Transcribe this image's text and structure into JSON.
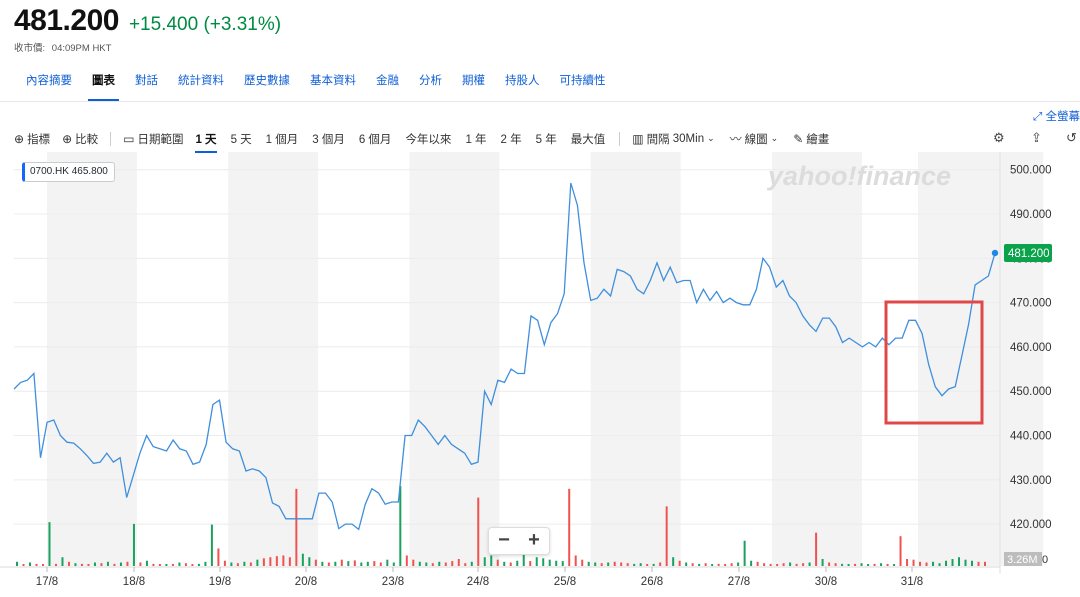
{
  "quote": {
    "price": "481.200",
    "change": "+15.400 (+3.31%)",
    "close_label": "收市價:",
    "close_time": "04:09PM HKT"
  },
  "tabs": [
    "內容摘要",
    "圖表",
    "對話",
    "統計資料",
    "歷史數據",
    "基本資料",
    "金融",
    "分析",
    "期權",
    "持股人",
    "可持續性"
  ],
  "active_tab": 1,
  "fullscreen_label": "全螢幕",
  "toolbar": {
    "indicators": "指標",
    "compare": "比較",
    "date_range": "日期範圍",
    "ranges": [
      "1 天",
      "5 天",
      "1 個月",
      "3 個月",
      "6 個月",
      "今年以來",
      "1 年",
      "2 年",
      "5 年",
      "最大值"
    ],
    "active_range": 0,
    "interval_label": "間隔",
    "interval_value": "30Min",
    "chart_type": "線圖",
    "draw": "繪畫"
  },
  "ticker_tag": "0700.HK 465.800",
  "watermark": "yahoo!finance",
  "zoom": {
    "minus": "−",
    "plus": "+"
  },
  "colors": {
    "line": "#3f8fdc",
    "up": "#19a15f",
    "down": "#ef5350",
    "accent": "#0f5fd6",
    "highlight_box": "#e04848",
    "price_tag": "#0aa24a"
  },
  "chart_data": {
    "type": "line",
    "ylabel": "",
    "ylim": [
      411,
      504
    ],
    "yticks": [
      "500.000",
      "490.000",
      "480.000",
      "470.000",
      "460.000",
      "450.000",
      "440.000",
      "430.000",
      "420.000"
    ],
    "xticks": [
      "17/8",
      "18/8",
      "19/8",
      "20/8",
      "23/8",
      "24/8",
      "25/8",
      "26/8",
      "27/8",
      "30/8",
      "31/8"
    ],
    "last_price_label": "481.200",
    "volume_label": "3.26M",
    "volume_axis_label": "0",
    "series": [
      {
        "values": [
          450.5,
          452,
          452.5,
          454,
          435,
          443,
          443.5,
          440,
          438.5,
          438.3,
          437,
          435.5,
          433.7,
          434,
          436,
          434,
          435,
          426,
          431,
          436,
          440,
          437.5,
          437,
          436.5,
          439,
          437,
          436.5,
          433.5,
          434,
          438,
          447,
          448,
          438.5,
          437,
          436.5,
          432,
          432.5,
          432,
          430.5,
          424.8,
          424,
          421.2,
          421.2,
          421.2,
          421.2,
          421.2,
          427,
          427,
          425,
          419,
          420,
          420,
          418.8,
          424.5,
          428,
          427,
          424.5,
          425,
          425,
          440,
          440,
          443.5,
          442,
          440,
          438,
          440,
          438,
          437,
          436,
          433.5,
          434,
          450,
          447,
          452.5,
          452,
          455,
          454,
          454,
          467,
          466,
          460.5,
          465.5,
          467.5,
          472,
          497,
          492,
          479,
          470.5,
          471,
          473,
          471.5,
          477.5,
          477,
          476,
          473,
          472,
          475,
          479,
          475,
          478,
          474.5,
          475,
          475,
          470,
          473,
          470.5,
          472.5,
          470,
          471,
          470,
          469.5,
          469.5,
          473,
          480,
          478,
          473.5,
          475,
          471.5,
          470,
          467,
          465,
          463.5,
          466.5,
          466.5,
          464.5,
          461,
          462,
          461,
          460,
          461,
          460,
          462,
          460.5,
          462,
          462,
          466,
          466,
          463,
          456,
          451,
          449,
          450.5,
          451,
          458,
          465,
          474,
          475,
          476,
          481.2
        ]
      }
    ],
    "volume": {
      "values": [
        0.12,
        0.05,
        0.1,
        0.06,
        0.05,
        1.25,
        0.06,
        0.25,
        0.12,
        0.08,
        0.06,
        0.05,
        0.1,
        0.08,
        0.12,
        0.06,
        0.1,
        0.12,
        1.2,
        0.1,
        0.15,
        0.06,
        0.05,
        0.05,
        0.06,
        0.1,
        0.08,
        0.05,
        0.06,
        0.12,
        1.18,
        0.5,
        0.15,
        0.1,
        0.08,
        0.12,
        0.1,
        0.18,
        0.22,
        0.25,
        0.28,
        0.3,
        0.25,
        2.2,
        0.35,
        0.25,
        0.18,
        0.12,
        0.1,
        0.12,
        0.18,
        0.14,
        0.16,
        0.1,
        0.12,
        0.14,
        0.1,
        0.18,
        0.1,
        2.28,
        0.3,
        0.18,
        0.12,
        0.1,
        0.08,
        0.12,
        0.1,
        0.14,
        0.2,
        0.08,
        0.12,
        1.95,
        0.25,
        0.3,
        0.18,
        0.12,
        0.1,
        0.15,
        0.32,
        0.14,
        0.25,
        0.22,
        0.18,
        0.15,
        0.14,
        2.2,
        0.3,
        0.18,
        0.12,
        0.1,
        0.08,
        0.1,
        0.12,
        0.1,
        0.08,
        0.06,
        0.08,
        0.05,
        0.06,
        0.1,
        1.7,
        0.25,
        0.15,
        0.1,
        0.08,
        0.06,
        0.08,
        0.05,
        0.06,
        0.05,
        0.08,
        0.1,
        0.72,
        0.15,
        0.12,
        0.08,
        0.06,
        0.05,
        0.08,
        0.1,
        0.06,
        0.08,
        0.1,
        0.95,
        0.2,
        0.1,
        0.08,
        0.06,
        0.05,
        0.06,
        0.08,
        0.05,
        0.06,
        0.08,
        0.06,
        0.05,
        0.85,
        0.2,
        0.18,
        0.12,
        0.1,
        0.12,
        0.08,
        0.15,
        0.2,
        0.25,
        0.18,
        0.15,
        0.12,
        0.12
      ],
      "up": [
        true,
        false,
        true,
        false,
        false,
        true,
        false,
        true,
        false,
        true,
        false,
        false,
        true,
        false,
        true,
        false,
        true,
        false,
        true,
        false,
        true,
        false,
        false,
        true,
        false,
        true,
        false,
        false,
        true,
        true,
        true,
        false,
        false,
        true,
        false,
        true,
        false,
        true,
        false,
        false,
        false,
        false,
        false,
        false,
        true,
        true,
        false,
        true,
        false,
        true,
        false,
        true,
        false,
        true,
        true,
        false,
        false,
        true,
        true,
        true,
        false,
        false,
        true,
        true,
        false,
        true,
        false,
        false,
        false,
        false,
        true,
        false,
        true,
        true,
        false,
        true,
        false,
        true,
        true,
        false,
        true,
        true,
        true,
        true,
        true,
        false,
        false,
        false,
        true,
        true,
        false,
        true,
        false,
        false,
        false,
        true,
        true,
        false,
        true,
        false,
        false,
        true,
        false,
        true,
        false,
        true,
        false,
        true,
        false,
        false,
        false,
        true,
        true,
        true,
        false,
        false,
        false,
        false,
        false,
        true,
        false,
        false,
        true,
        false,
        true,
        false,
        false,
        true,
        true,
        false,
        true,
        true,
        false,
        true,
        false,
        true,
        false,
        false,
        false,
        false,
        false,
        true,
        true,
        true,
        true,
        true,
        true,
        true
      ]
    },
    "grid": true,
    "shaded_bands": true
  }
}
